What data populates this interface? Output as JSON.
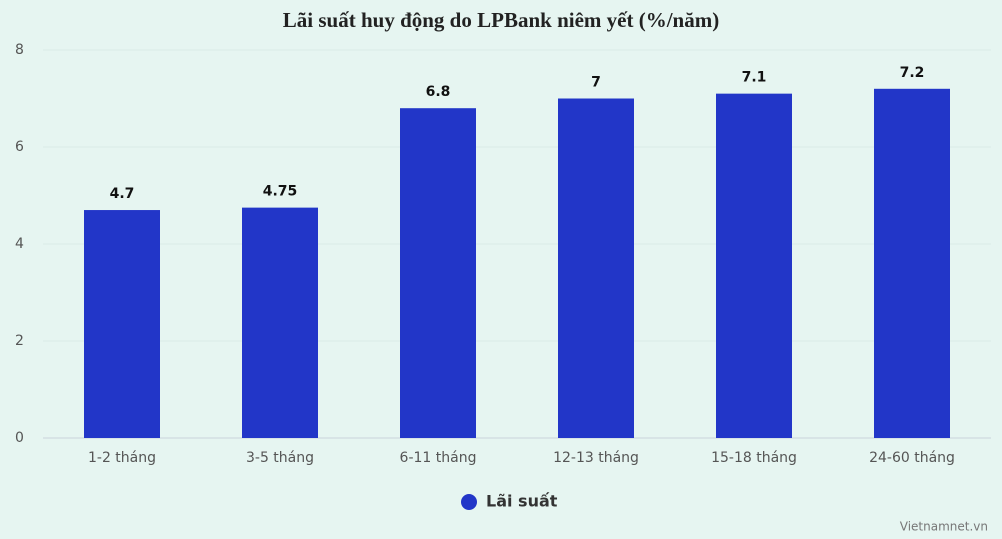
{
  "chart_data": {
    "type": "bar",
    "title": "Lãi suất huy động do LPBank niêm yết (%/năm)",
    "categories": [
      "1-2 tháng",
      "3-5 tháng",
      "6-11 tháng",
      "12-13 tháng",
      "15-18 tháng",
      "24-60 tháng"
    ],
    "series": [
      {
        "name": "Lãi suất",
        "color": "#2236c8",
        "values": [
          4.7,
          4.75,
          6.8,
          7,
          7.1,
          7.2
        ]
      }
    ],
    "ylim": [
      0,
      8
    ],
    "yticks": [
      0,
      2,
      4,
      6,
      8
    ],
    "grid": true,
    "legend": "bottom",
    "source": "Vietnamnet.vn"
  }
}
